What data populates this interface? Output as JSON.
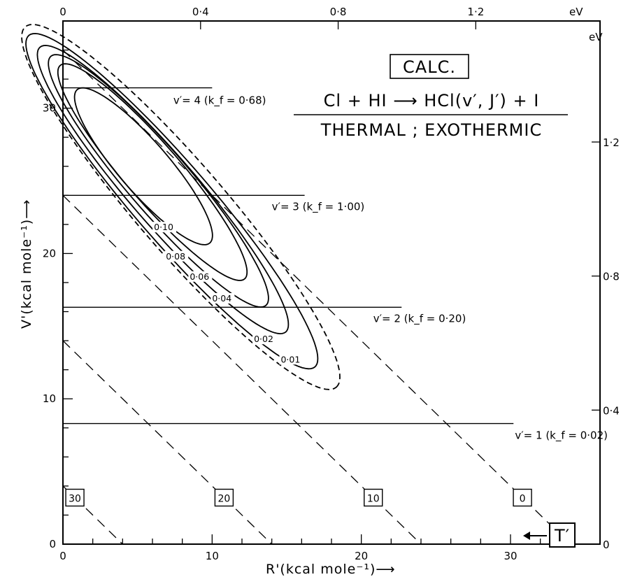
{
  "chart_data": {
    "type": "contour",
    "xlabel": "R'(kcal mole⁻¹)⟶",
    "ylabel": "V'(kcal mole⁻¹)⟶",
    "x_range": [
      0,
      36
    ],
    "y_range": [
      0,
      36
    ],
    "x_ticks": [
      0,
      10,
      20,
      30
    ],
    "y_ticks": [
      0,
      10,
      20,
      30
    ],
    "top_axis": {
      "unit": "eV",
      "ticks": [
        "0",
        "0·4",
        "0·8",
        "1·2"
      ],
      "values": [
        0,
        0.4,
        0.8,
        1.2
      ]
    },
    "right_axis": {
      "unit": "eV",
      "ticks": [
        "0",
        "0·4",
        "0·8",
        "1·2"
      ],
      "values": [
        0,
        0.4,
        0.8,
        1.2
      ]
    },
    "title_box": "CALC.",
    "reaction": "Cl + HI ⟶ HCl(v′, J′) + I",
    "condition": "THERMAL ; EXOTHERMIC",
    "vibrational_levels": [
      {
        "label": "v′= 1 (k_f = 0·02)",
        "v": 1,
        "kf": "0·02",
        "energy": 8.3,
        "x_end": 30.2
      },
      {
        "label": "v′= 2 (k_f = 0·20)",
        "v": 2,
        "kf": "0·20",
        "energy": 16.3,
        "x_end": 22.7
      },
      {
        "label": "v′= 3 (k_f = 1·00)",
        "v": 3,
        "kf": "1·00",
        "energy": 24.0,
        "x_end": 16.2
      },
      {
        "label": "v′= 4 (k_f = 0·68)",
        "v": 4,
        "kf": "0·68",
        "energy": 31.4,
        "x_end": 10.0
      }
    ],
    "isotherms_T_prime": [
      {
        "label": "0",
        "value": 0,
        "intercept": 34
      },
      {
        "label": "10",
        "value": 10,
        "intercept": 24
      },
      {
        "label": "20",
        "value": 20,
        "intercept": 14
      },
      {
        "label": "30",
        "value": 30,
        "intercept": 4
      }
    ],
    "T_prime_label": "T′",
    "contours": [
      {
        "label": "0·01",
        "level": 0.01,
        "style": "dashed",
        "cx": 7.9,
        "cy": 23.2,
        "a": 16.2,
        "b": 3.0,
        "angle": -50
      },
      {
        "label": "0·02",
        "level": 0.02,
        "style": "solid",
        "cx": 7.3,
        "cy": 23.6,
        "a": 14.9,
        "b": 2.6,
        "angle": -50
      },
      {
        "label": "0·04",
        "level": 0.04,
        "style": "solid",
        "cx": 6.7,
        "cy": 24.4,
        "a": 12.8,
        "b": 2.3,
        "angle": -50
      },
      {
        "label": "0·06",
        "level": 0.06,
        "style": "solid",
        "cx": 6.4,
        "cy": 25.0,
        "a": 11.2,
        "b": 2.1,
        "angle": -50
      },
      {
        "label": "0·08",
        "level": 0.08,
        "style": "solid",
        "cx": 6.0,
        "cy": 25.6,
        "a": 9.6,
        "b": 1.9,
        "angle": -50
      },
      {
        "label": "0·10",
        "level": 0.1,
        "style": "solid",
        "cx": 5.4,
        "cy": 26.0,
        "a": 6.9,
        "b": 1.7,
        "angle": -50
      }
    ],
    "contour_label_positions": [
      {
        "label": "0·01",
        "x": 14.6,
        "y": 12.5
      },
      {
        "label": "0·02",
        "x": 12.8,
        "y": 13.9
      },
      {
        "label": "0·04",
        "x": 10.0,
        "y": 16.7
      },
      {
        "label": "0·06",
        "x": 8.5,
        "y": 18.2
      },
      {
        "label": "0·08",
        "x": 6.9,
        "y": 19.6
      },
      {
        "label": "0·10",
        "x": 6.1,
        "y": 21.6
      }
    ],
    "grid": false
  }
}
